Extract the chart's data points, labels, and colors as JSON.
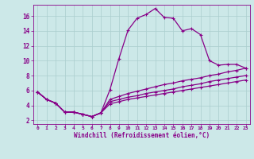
{
  "background_color": "#cce8e8",
  "line_color": "#880088",
  "grid_color": "#aacece",
  "xlabel": "Windchill (Refroidissement éolien,°C)",
  "xlabel_color": "#880088",
  "tick_color": "#880088",
  "xlim": [
    -0.5,
    23.5
  ],
  "ylim": [
    1.5,
    17.5
  ],
  "xticks": [
    0,
    1,
    2,
    3,
    4,
    5,
    6,
    7,
    8,
    9,
    10,
    11,
    12,
    13,
    14,
    15,
    16,
    17,
    18,
    19,
    20,
    21,
    22,
    23
  ],
  "yticks": [
    2,
    4,
    6,
    8,
    10,
    12,
    14,
    16
  ],
  "curve1_x": [
    0,
    1,
    2,
    3,
    4,
    5,
    6,
    7,
    8,
    9,
    10,
    11,
    12,
    13,
    14,
    15,
    16,
    17,
    18,
    19,
    20,
    21,
    22,
    23
  ],
  "curve1_y": [
    5.8,
    4.8,
    4.3,
    3.1,
    3.1,
    2.8,
    2.5,
    3.0,
    6.1,
    10.3,
    14.1,
    15.7,
    16.2,
    17.0,
    15.8,
    15.7,
    14.0,
    14.3,
    13.5,
    10.0,
    9.4,
    9.5,
    9.5,
    9.0
  ],
  "curve2_x": [
    0,
    1,
    2,
    3,
    4,
    5,
    6,
    7,
    8,
    9,
    10,
    11,
    12,
    13,
    14,
    15,
    16,
    17,
    18,
    19,
    20,
    21,
    22,
    23
  ],
  "curve2_y": [
    5.8,
    4.8,
    4.3,
    3.1,
    3.1,
    2.8,
    2.5,
    3.0,
    4.8,
    5.2,
    5.6,
    5.9,
    6.2,
    6.5,
    6.8,
    7.0,
    7.3,
    7.5,
    7.7,
    8.0,
    8.2,
    8.5,
    8.7,
    9.0
  ],
  "curve3_x": [
    0,
    1,
    2,
    3,
    4,
    5,
    6,
    7,
    8,
    9,
    10,
    11,
    12,
    13,
    14,
    15,
    16,
    17,
    18,
    19,
    20,
    21,
    22,
    23
  ],
  "curve3_y": [
    5.8,
    4.8,
    4.3,
    3.1,
    3.1,
    2.8,
    2.5,
    3.0,
    4.5,
    4.8,
    5.1,
    5.3,
    5.6,
    5.8,
    6.0,
    6.2,
    6.5,
    6.7,
    6.9,
    7.2,
    7.4,
    7.6,
    7.8,
    8.0
  ],
  "curve4_x": [
    0,
    1,
    2,
    3,
    4,
    5,
    6,
    7,
    8,
    9,
    10,
    11,
    12,
    13,
    14,
    15,
    16,
    17,
    18,
    19,
    20,
    21,
    22,
    23
  ],
  "curve4_y": [
    5.8,
    4.8,
    4.3,
    3.1,
    3.1,
    2.8,
    2.5,
    3.0,
    4.2,
    4.5,
    4.8,
    5.0,
    5.2,
    5.4,
    5.6,
    5.8,
    6.0,
    6.2,
    6.4,
    6.6,
    6.8,
    7.0,
    7.2,
    7.4
  ]
}
